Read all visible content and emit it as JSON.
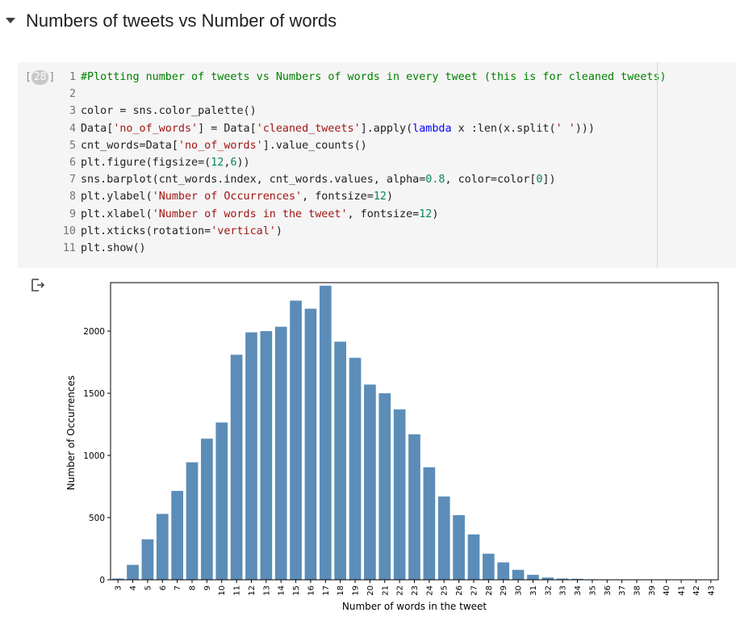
{
  "section": {
    "title": "Numbers of tweets vs Number of words",
    "caret_icon": "caret-down-icon"
  },
  "cell": {
    "execution_count": "28",
    "lines": [
      {
        "no": "1",
        "parts": [
          {
            "t": "#Plotting number of tweets vs Numbers of words in every tweet (this is for cleaned tweets)",
            "c": "c"
          }
        ]
      },
      {
        "no": "2",
        "parts": []
      },
      {
        "no": "3",
        "parts": [
          {
            "t": "color = sns.color_palette()"
          }
        ]
      },
      {
        "no": "4",
        "parts": [
          {
            "t": "Data["
          },
          {
            "t": "'no_of_words'",
            "c": "s"
          },
          {
            "t": "] = Data["
          },
          {
            "t": "'cleaned_tweets'",
            "c": "s"
          },
          {
            "t": "].apply("
          },
          {
            "t": "lambda",
            "c": "k"
          },
          {
            "t": " x :len(x.split("
          },
          {
            "t": "' '",
            "c": "s"
          },
          {
            "t": ")))"
          }
        ]
      },
      {
        "no": "5",
        "parts": [
          {
            "t": "cnt_words=Data["
          },
          {
            "t": "'no_of_words'",
            "c": "s"
          },
          {
            "t": "].value_counts()"
          }
        ]
      },
      {
        "no": "6",
        "parts": [
          {
            "t": "plt.figure(figsize=("
          },
          {
            "t": "12",
            "c": "n"
          },
          {
            "t": ","
          },
          {
            "t": "6",
            "c": "n"
          },
          {
            "t": "))"
          }
        ]
      },
      {
        "no": "7",
        "parts": [
          {
            "t": "sns.barplot(cnt_words.index, cnt_words.values, alpha="
          },
          {
            "t": "0.8",
            "c": "n"
          },
          {
            "t": ", color=color["
          },
          {
            "t": "0",
            "c": "n"
          },
          {
            "t": "])"
          }
        ]
      },
      {
        "no": "8",
        "parts": [
          {
            "t": "plt.ylabel("
          },
          {
            "t": "'Number of Occurrences'",
            "c": "s"
          },
          {
            "t": ", fontsize="
          },
          {
            "t": "12",
            "c": "n"
          },
          {
            "t": ")"
          }
        ]
      },
      {
        "no": "9",
        "parts": [
          {
            "t": "plt.xlabel("
          },
          {
            "t": "'Number of words in the tweet'",
            "c": "s"
          },
          {
            "t": ", fontsize="
          },
          {
            "t": "12",
            "c": "n"
          },
          {
            "t": ")"
          }
        ]
      },
      {
        "no": "10",
        "parts": [
          {
            "t": "plt.xticks(rotation="
          },
          {
            "t": "'vertical'",
            "c": "s"
          },
          {
            "t": ")"
          }
        ]
      },
      {
        "no": "11",
        "parts": [
          {
            "t": "plt.show()"
          }
        ]
      }
    ]
  },
  "output": {
    "icon": "output-arrow-icon"
  },
  "colors": {
    "bar": "#5b8db8",
    "comment": "#008000",
    "string": "#a31515",
    "number": "#098658",
    "keyword": "#0000ff"
  },
  "chart_data": {
    "type": "bar",
    "categories": [
      "3",
      "4",
      "5",
      "6",
      "7",
      "8",
      "9",
      "10",
      "11",
      "12",
      "13",
      "14",
      "15",
      "16",
      "17",
      "18",
      "19",
      "20",
      "21",
      "22",
      "23",
      "24",
      "25",
      "26",
      "27",
      "28",
      "29",
      "30",
      "31",
      "32",
      "33",
      "34",
      "35",
      "36",
      "37",
      "38",
      "39",
      "40",
      "41",
      "42",
      "43"
    ],
    "values": [
      10,
      120,
      325,
      530,
      715,
      945,
      1135,
      1265,
      1810,
      1990,
      2000,
      2035,
      2245,
      2180,
      2365,
      1915,
      1785,
      1570,
      1500,
      1370,
      1170,
      905,
      670,
      520,
      365,
      210,
      140,
      80,
      40,
      18,
      10,
      8,
      4,
      3,
      2,
      2,
      1,
      1,
      1,
      1,
      1
    ],
    "ylim": [
      0,
      2390
    ],
    "yticks": [
      0,
      500,
      1000,
      1500,
      2000
    ],
    "xlabel": "Number of words in the tweet",
    "ylabel": "Number of Occurrences",
    "title": "",
    "grid": false
  }
}
